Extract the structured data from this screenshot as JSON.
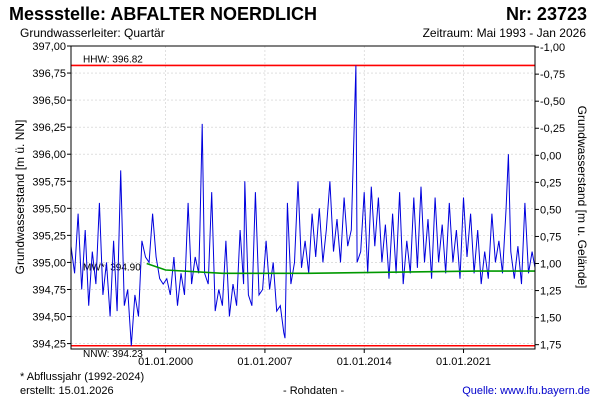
{
  "header": {
    "title": "Messstelle: ABFALTER NOERDLICH",
    "number": "Nr: 23723",
    "aquifer": "Grundwasserleiter: Quartär",
    "period": "Zeitraum: Mai 1993 - Jan 2026"
  },
  "footer": {
    "note": "* Abflussjahr (1992-2024)",
    "created": "erstellt:  15.01.2026",
    "raw": "- Rohdaten -",
    "source": "Quelle: www.lfu.bayern.de"
  },
  "colors": {
    "series": "#0000dd",
    "mean_line": "#009900",
    "extreme_lines": "#ff0000",
    "grid": "#cccccc"
  },
  "chart_data": {
    "type": "line",
    "ylabel": "Grundwasserstand [m ü. NN]",
    "y2label": "Grundwasserstand [m u. Gelände]",
    "ylim": [
      394.2,
      397.0
    ],
    "y_ticks": [
      394.25,
      394.5,
      394.75,
      395.0,
      395.25,
      395.5,
      395.75,
      396.0,
      396.25,
      396.5,
      396.75,
      397.0
    ],
    "y_tick_labels": [
      "394,25",
      "394,50",
      "394,75",
      "395,00",
      "395,25",
      "395,50",
      "395,75",
      "396,00",
      "396,25",
      "396,50",
      "396,75",
      "397,00"
    ],
    "y2_ticks": [
      -1.0,
      -0.75,
      -0.5,
      -0.25,
      0.0,
      0.25,
      0.5,
      0.75,
      1.0,
      1.25,
      1.5,
      1.75
    ],
    "y2_tick_labels": [
      "-1,00",
      "-0,75",
      "-0,50",
      "-0,25",
      "0,00",
      "0,25",
      "0,50",
      "0,75",
      "1,00",
      "1,25",
      "1,50",
      "1,75"
    ],
    "y2_ground_level": 395.99,
    "xlim": [
      "1993-05-01",
      "2026-01-15"
    ],
    "x_ticks": [
      "2000-01-01",
      "2007-01-01",
      "2014-01-01",
      "2021-01-01"
    ],
    "x_tick_labels": [
      "01.01.2000",
      "01.01.2007",
      "01.01.2014",
      "01.01.2021"
    ],
    "grid": true,
    "reference_lines": [
      {
        "label": "HHW: 396.82",
        "value": 396.82,
        "color": "#ff0000"
      },
      {
        "label": "NNW: 394.23",
        "value": 394.23,
        "color": "#ff0000"
      },
      {
        "label": "MW*: 394.90",
        "value": 394.9,
        "color": "#009900"
      }
    ],
    "series": [
      {
        "points": [
          [
            "1993-05-01",
            395.15
          ],
          [
            "1993-08-01",
            394.9
          ],
          [
            "1993-11-01",
            395.45
          ],
          [
            "1994-02-01",
            394.75
          ],
          [
            "1994-05-01",
            395.3
          ],
          [
            "1994-08-01",
            394.6
          ],
          [
            "1994-11-01",
            395.1
          ],
          [
            "1995-02-01",
            394.8
          ],
          [
            "1995-05-01",
            395.55
          ],
          [
            "1995-08-01",
            394.7
          ],
          [
            "1995-11-01",
            395.0
          ],
          [
            "1996-02-01",
            394.5
          ],
          [
            "1996-05-01",
            395.2
          ],
          [
            "1996-08-01",
            394.55
          ],
          [
            "1996-11-01",
            395.85
          ],
          [
            "1997-02-01",
            394.6
          ],
          [
            "1997-05-01",
            394.75
          ],
          [
            "1997-08-01",
            394.23
          ],
          [
            "1997-11-01",
            394.7
          ],
          [
            "1998-02-01",
            394.5
          ],
          [
            "1998-05-01",
            395.2
          ],
          [
            "1998-08-01",
            395.05
          ],
          [
            "1998-11-01",
            395.0
          ],
          [
            "1999-02-01",
            395.45
          ],
          [
            "1999-05-01",
            395.05
          ],
          [
            "1999-08-01",
            394.85
          ],
          [
            "1999-11-01",
            394.8
          ],
          [
            "2000-02-01",
            394.85
          ],
          [
            "2000-05-01",
            394.7
          ],
          [
            "2000-08-01",
            395.05
          ],
          [
            "2000-11-01",
            394.6
          ],
          [
            "2001-02-01",
            394.9
          ],
          [
            "2001-05-01",
            394.7
          ],
          [
            "2001-08-01",
            395.55
          ],
          [
            "2001-11-01",
            394.8
          ],
          [
            "2002-02-01",
            395.05
          ],
          [
            "2002-05-01",
            394.9
          ],
          [
            "2002-06-01",
            395.3
          ],
          [
            "2002-08-01",
            396.28
          ],
          [
            "2002-10-01",
            394.9
          ],
          [
            "2003-01-01",
            394.8
          ],
          [
            "2003-04-01",
            395.65
          ],
          [
            "2003-07-01",
            394.55
          ],
          [
            "2003-10-01",
            394.75
          ],
          [
            "2004-01-01",
            394.6
          ],
          [
            "2004-04-01",
            395.2
          ],
          [
            "2004-07-01",
            394.5
          ],
          [
            "2004-10-01",
            394.8
          ],
          [
            "2005-01-01",
            394.6
          ],
          [
            "2005-04-01",
            395.3
          ],
          [
            "2005-07-01",
            394.8
          ],
          [
            "2005-08-01",
            395.75
          ],
          [
            "2005-11-01",
            394.7
          ],
          [
            "2006-02-01",
            394.6
          ],
          [
            "2006-05-01",
            395.65
          ],
          [
            "2006-08-01",
            394.7
          ],
          [
            "2006-11-01",
            394.75
          ],
          [
            "2007-02-01",
            395.2
          ],
          [
            "2007-05-01",
            394.75
          ],
          [
            "2007-08-01",
            395.0
          ],
          [
            "2007-11-01",
            394.55
          ],
          [
            "2008-02-01",
            394.6
          ],
          [
            "2008-05-01",
            394.35
          ],
          [
            "2008-06-01",
            394.3
          ],
          [
            "2008-08-01",
            395.55
          ],
          [
            "2008-11-01",
            394.8
          ],
          [
            "2009-02-01",
            395.0
          ],
          [
            "2009-05-01",
            395.75
          ],
          [
            "2009-08-01",
            394.95
          ],
          [
            "2009-11-01",
            395.2
          ],
          [
            "2010-02-01",
            394.9
          ],
          [
            "2010-05-01",
            395.45
          ],
          [
            "2010-08-01",
            395.05
          ],
          [
            "2010-11-01",
            395.5
          ],
          [
            "2011-02-01",
            395.0
          ],
          [
            "2011-05-01",
            395.3
          ],
          [
            "2011-08-01",
            395.75
          ],
          [
            "2011-11-01",
            395.1
          ],
          [
            "2012-02-01",
            395.4
          ],
          [
            "2012-05-01",
            395.0
          ],
          [
            "2012-08-01",
            395.6
          ],
          [
            "2012-11-01",
            395.15
          ],
          [
            "2013-02-01",
            395.3
          ],
          [
            "2013-06-01",
            396.82
          ],
          [
            "2013-07-01",
            395.0
          ],
          [
            "2013-10-01",
            395.1
          ],
          [
            "2014-01-01",
            395.65
          ],
          [
            "2014-04-01",
            394.9
          ],
          [
            "2014-07-01",
            395.7
          ],
          [
            "2014-10-01",
            395.15
          ],
          [
            "2015-01-01",
            395.6
          ],
          [
            "2015-04-01",
            395.0
          ],
          [
            "2015-07-01",
            395.35
          ],
          [
            "2015-10-01",
            394.85
          ],
          [
            "2016-01-01",
            395.45
          ],
          [
            "2016-04-01",
            394.9
          ],
          [
            "2016-07-01",
            395.65
          ],
          [
            "2016-10-01",
            394.8
          ],
          [
            "2017-01-01",
            395.2
          ],
          [
            "2017-04-01",
            394.9
          ],
          [
            "2017-07-01",
            395.6
          ],
          [
            "2017-10-01",
            394.95
          ],
          [
            "2018-01-01",
            395.7
          ],
          [
            "2018-04-01",
            395.0
          ],
          [
            "2018-07-01",
            395.4
          ],
          [
            "2018-10-01",
            394.85
          ],
          [
            "2019-01-01",
            395.6
          ],
          [
            "2019-04-01",
            395.0
          ],
          [
            "2019-07-01",
            395.35
          ],
          [
            "2019-10-01",
            394.9
          ],
          [
            "2020-01-01",
            395.55
          ],
          [
            "2020-04-01",
            395.0
          ],
          [
            "2020-07-01",
            395.3
          ],
          [
            "2020-10-01",
            394.85
          ],
          [
            "2021-01-01",
            395.6
          ],
          [
            "2021-04-01",
            395.05
          ],
          [
            "2021-07-01",
            395.45
          ],
          [
            "2021-10-01",
            394.9
          ],
          [
            "2022-01-01",
            395.3
          ],
          [
            "2022-04-01",
            394.8
          ],
          [
            "2022-07-01",
            395.1
          ],
          [
            "2022-10-01",
            394.85
          ],
          [
            "2023-01-01",
            395.45
          ],
          [
            "2023-04-01",
            395.0
          ],
          [
            "2023-07-01",
            395.2
          ],
          [
            "2023-10-01",
            394.9
          ],
          [
            "2024-01-01",
            395.5
          ],
          [
            "2024-03-01",
            396.0
          ],
          [
            "2024-05-01",
            395.1
          ],
          [
            "2024-08-01",
            394.85
          ],
          [
            "2024-11-01",
            395.15
          ],
          [
            "2025-02-01",
            394.8
          ],
          [
            "2025-05-01",
            395.55
          ],
          [
            "2025-08-01",
            394.9
          ],
          [
            "2025-11-01",
            395.1
          ],
          [
            "2026-01-15",
            394.95
          ]
        ]
      },
      {
        "points": [
          [
            "1998-09-01",
            394.99
          ],
          [
            "2000-01-01",
            394.93
          ],
          [
            "2004-01-01",
            394.9
          ],
          [
            "2010-01-01",
            394.9
          ],
          [
            "2016-01-01",
            394.91
          ],
          [
            "2022-01-01",
            394.92
          ],
          [
            "2026-01-15",
            394.92
          ]
        ]
      }
    ]
  }
}
